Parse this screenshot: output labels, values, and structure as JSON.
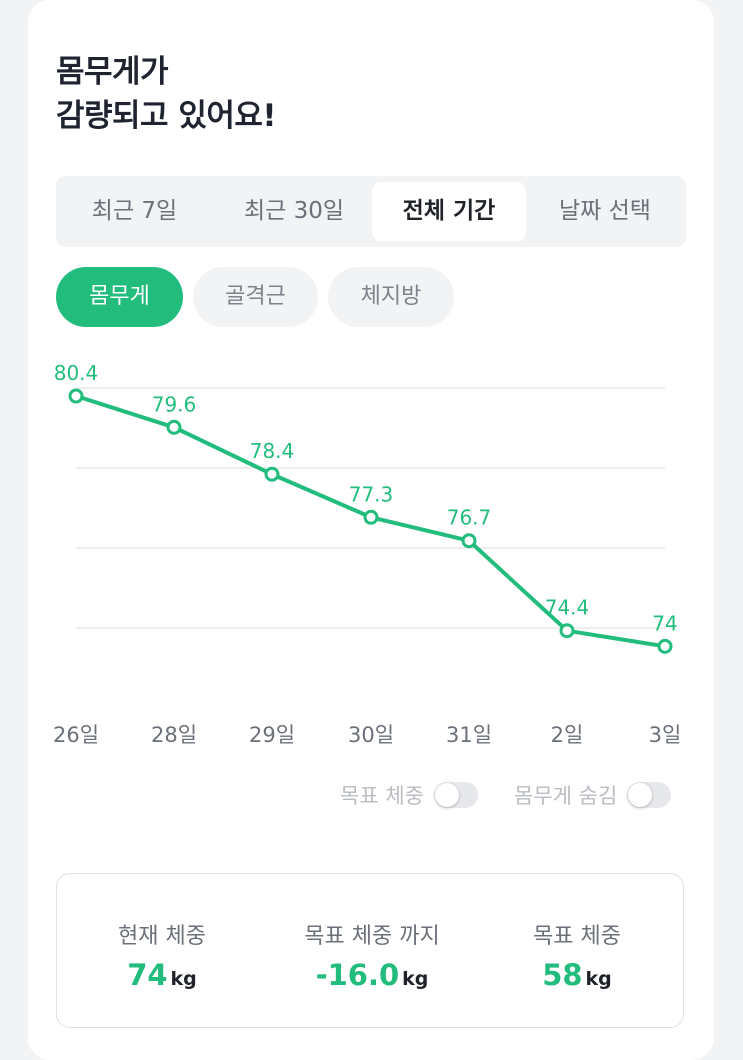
{
  "page": {
    "title_line1": "몸무게가",
    "title_line2": "감량되고 있어요!"
  },
  "period_tabs": [
    {
      "label": "최근 7일",
      "active": false
    },
    {
      "label": "최근 30일",
      "active": false
    },
    {
      "label": "전체 기간",
      "active": true
    },
    {
      "label": "날짜 선택",
      "active": false
    }
  ],
  "metric_tabs": [
    {
      "label": "몸무게",
      "active": true
    },
    {
      "label": "골격근",
      "active": false
    },
    {
      "label": "체지방",
      "active": false
    }
  ],
  "chart_data": {
    "type": "line",
    "categories": [
      "26일",
      "28일",
      "29일",
      "30일",
      "31일",
      "2일",
      "3일"
    ],
    "values": [
      80.4,
      79.6,
      78.4,
      77.3,
      76.7,
      74.4,
      74
    ],
    "data_labels": [
      "80.4",
      "79.6",
      "78.4",
      "77.3",
      "76.7",
      "74.4",
      "74"
    ],
    "ylim": [
      72.5,
      81.5
    ],
    "grid": true,
    "colors": {
      "line": "#22bd7c",
      "grid": "#e8e9ec",
      "tick": "#6b7079"
    }
  },
  "toggles": {
    "goal_weight": {
      "label": "목표 체중",
      "on": false
    },
    "hide_weight": {
      "label": "몸무게 숨김",
      "on": false
    }
  },
  "summary": {
    "current": {
      "label": "현재 체중",
      "value": "74",
      "unit": "kg"
    },
    "to_goal": {
      "label": "목표 체중 까지",
      "value": "-16.0",
      "unit": "kg"
    },
    "goal": {
      "label": "목표 체중",
      "value": "58",
      "unit": "kg"
    }
  },
  "colors": {
    "accent": "#22bd7c",
    "text": "#1f2329",
    "muted": "#6b7079"
  }
}
